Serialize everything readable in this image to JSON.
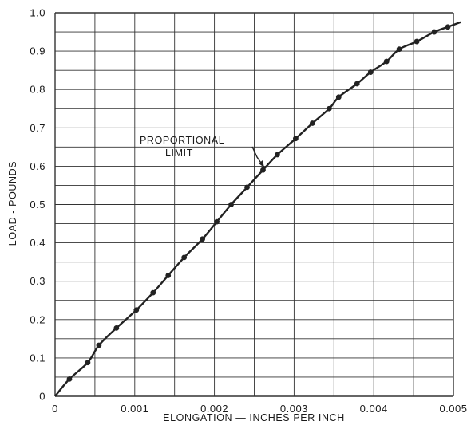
{
  "chart_data": {
    "type": "line",
    "title": "",
    "xlabel": "ELONGATION — INCHES PER INCH",
    "ylabel": "LOAD - POUNDS",
    "xlim": [
      0,
      0.005
    ],
    "ylim": [
      0,
      1.0
    ],
    "x_tick_labels": [
      "0",
      "0.001",
      "0.002",
      "0.003",
      "0.004",
      "0.005"
    ],
    "y_tick_labels": [
      "0",
      "0.1",
      "0.2",
      "0.3",
      "0.4",
      "0.5",
      "0.6",
      "0.7",
      "0.8",
      "0.9",
      "1.0"
    ],
    "grid": true,
    "annotation": {
      "lines": [
        "PROPORTIONAL",
        "LIMIT"
      ],
      "x": 0.00268,
      "y": 0.62
    },
    "series": [
      {
        "color": "#222222",
        "x": [
          0,
          0.00018,
          0.00041,
          0.00055,
          0.00077,
          0.00102,
          0.00123,
          0.00142,
          0.00162,
          0.00185,
          0.00203,
          0.00221,
          0.00241,
          0.00261,
          0.00279,
          0.00302,
          0.00323,
          0.00344,
          0.00356,
          0.00379,
          0.00396,
          0.00416,
          0.00432,
          0.00454,
          0.00476,
          0.00493
        ],
        "y": [
          0,
          0.045,
          0.088,
          0.133,
          0.178,
          0.225,
          0.27,
          0.315,
          0.362,
          0.41,
          0.455,
          0.5,
          0.545,
          0.59,
          0.63,
          0.672,
          0.712,
          0.75,
          0.78,
          0.815,
          0.845,
          0.873,
          0.905,
          0.925,
          0.95,
          0.963
        ]
      }
    ]
  }
}
